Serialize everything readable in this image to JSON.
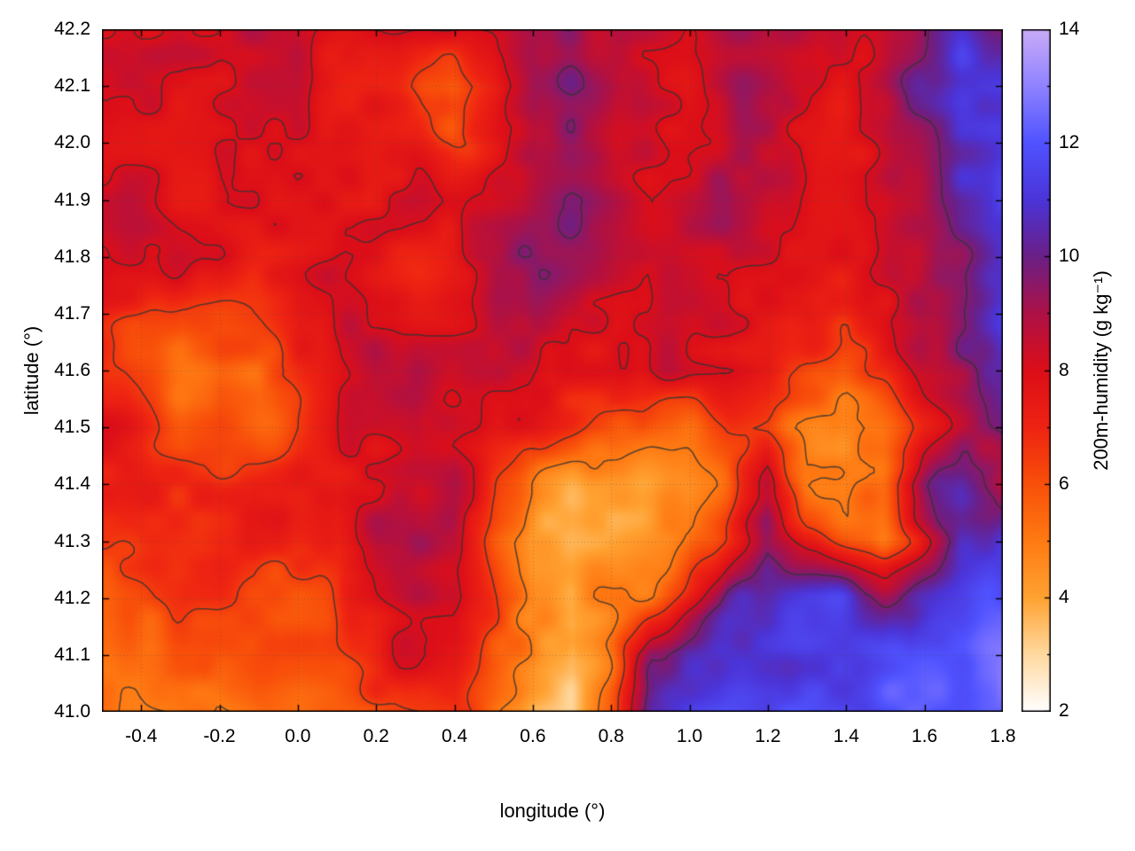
{
  "chart_data": {
    "type": "heatmap",
    "title": "",
    "xlabel": "longitude (°)",
    "ylabel": "latitude (°)",
    "xlim": [
      -0.5,
      1.8
    ],
    "ylim": [
      41.0,
      42.2
    ],
    "grid_on": true,
    "xtick_values": [
      -0.4,
      -0.2,
      0.0,
      0.2,
      0.4,
      0.6,
      0.8,
      1.0,
      1.2,
      1.4,
      1.6,
      1.8
    ],
    "xtick_labels": [
      "-0.4",
      "-0.2",
      "0.0",
      "0.2",
      "0.4",
      "0.6",
      "0.8",
      "1.0",
      "1.2",
      "1.4",
      "1.6",
      "1.8"
    ],
    "ytick_values": [
      41.0,
      41.1,
      41.2,
      41.3,
      41.4,
      41.5,
      41.6,
      41.7,
      41.8,
      41.9,
      42.0,
      42.1,
      42.2
    ],
    "ytick_labels": [
      "41.0",
      "41.1",
      "41.2",
      "41.3",
      "41.4",
      "41.5",
      "41.6",
      "41.7",
      "41.8",
      "41.9",
      "42.0",
      "42.1",
      "42.2"
    ],
    "colorbar": {
      "label": "200m-humidity (g kg⁻¹)",
      "min": 2,
      "max": 14,
      "tick_values": [
        2,
        4,
        6,
        8,
        10,
        12,
        14
      ],
      "tick_labels": [
        "2",
        "4",
        "6",
        "8",
        "10",
        "12",
        "14"
      ],
      "minor_tick_values": [
        3,
        5,
        7,
        9,
        11,
        13
      ]
    },
    "palette": [
      [
        2,
        "#ffffff"
      ],
      [
        3,
        "#ffd9a0"
      ],
      [
        4,
        "#ffa232"
      ],
      [
        5,
        "#ff7a12"
      ],
      [
        6,
        "#f8500a"
      ],
      [
        7,
        "#ee2312"
      ],
      [
        8,
        "#dc0e18"
      ],
      [
        9,
        "#ad1146"
      ],
      [
        10,
        "#6b1f86"
      ],
      [
        11,
        "#4b34d8"
      ],
      [
        12,
        "#4f52ff"
      ],
      [
        13,
        "#8f82ff"
      ],
      [
        14,
        "#c9abf7"
      ]
    ],
    "contour_levels": [
      5.0,
      6.5,
      8.05,
      9.6
    ],
    "contour_color": "#333333",
    "humidity_grid": {
      "nx": 24,
      "ny": 13,
      "lat_order": "north_to_south",
      "values": [
        [
          8.3,
          8.0,
          8.3,
          8.0,
          8.2,
          8.4,
          8.0,
          8.2,
          7.8,
          7.8,
          8.5,
          9.2,
          9.0,
          8.4,
          9.0,
          8.6,
          8.8,
          8.4,
          8.6,
          8.2,
          8.5,
          9.5,
          11.0,
          9.5
        ],
        [
          8.0,
          8.2,
          8.0,
          7.8,
          8.0,
          8.2,
          7.8,
          7.6,
          6.5,
          5.5,
          6.5,
          8.8,
          9.4,
          9.0,
          8.4,
          8.0,
          8.6,
          8.8,
          8.2,
          8.0,
          8.4,
          10.0,
          11.5,
          11.8
        ],
        [
          7.8,
          8.0,
          8.2,
          8.0,
          7.8,
          8.0,
          8.2,
          7.8,
          7.2,
          6.0,
          7.0,
          8.4,
          8.8,
          8.2,
          8.6,
          8.2,
          8.0,
          8.4,
          8.0,
          7.8,
          8.2,
          9.0,
          11.0,
          11.5
        ],
        [
          8.2,
          8.5,
          8.0,
          7.8,
          8.0,
          7.8,
          7.6,
          7.8,
          8.0,
          7.8,
          8.2,
          8.8,
          9.2,
          8.6,
          8.2,
          8.8,
          9.0,
          8.4,
          8.0,
          7.6,
          7.8,
          8.5,
          10.5,
          11.5
        ],
        [
          7.8,
          8.0,
          7.8,
          8.0,
          7.6,
          7.8,
          8.0,
          7.8,
          7.6,
          7.8,
          8.6,
          9.0,
          8.6,
          8.2,
          8.0,
          8.2,
          8.4,
          8.0,
          7.8,
          7.6,
          7.8,
          8.2,
          9.5,
          11.0
        ],
        [
          7.2,
          6.5,
          6.0,
          6.2,
          6.8,
          7.5,
          7.8,
          8.0,
          7.8,
          8.0,
          8.4,
          8.8,
          8.2,
          8.0,
          7.8,
          8.0,
          8.2,
          7.8,
          7.4,
          6.5,
          7.2,
          8.5,
          9.5,
          11.2
        ],
        [
          7.0,
          6.0,
          5.2,
          5.8,
          5.5,
          6.8,
          7.5,
          8.5,
          9.0,
          8.2,
          8.0,
          8.2,
          8.0,
          7.8,
          8.0,
          7.8,
          8.0,
          7.6,
          6.0,
          5.0,
          6.5,
          8.0,
          9.0,
          10.2
        ],
        [
          7.2,
          6.8,
          6.2,
          6.5,
          6.0,
          6.8,
          7.5,
          8.0,
          8.8,
          8.0,
          7.6,
          7.2,
          6.8,
          6.5,
          6.0,
          5.8,
          6.2,
          5.5,
          4.8,
          4.5,
          5.5,
          7.5,
          9.0,
          10.0
        ],
        [
          7.0,
          7.2,
          7.0,
          6.8,
          7.0,
          7.2,
          7.0,
          7.5,
          8.5,
          9.0,
          6.5,
          4.8,
          4.2,
          4.0,
          4.2,
          4.8,
          5.5,
          8.5,
          5.0,
          4.5,
          5.5,
          9.5,
          10.5,
          9.2
        ],
        [
          6.8,
          7.0,
          6.8,
          7.0,
          6.8,
          7.0,
          7.2,
          9.0,
          9.3,
          8.8,
          6.0,
          4.0,
          3.6,
          4.0,
          4.8,
          5.2,
          7.0,
          9.5,
          7.0,
          5.5,
          5.0,
          7.5,
          10.8,
          11.2
        ],
        [
          6.5,
          6.2,
          6.5,
          6.8,
          6.5,
          6.2,
          6.8,
          8.0,
          9.2,
          9.0,
          7.0,
          4.2,
          3.6,
          4.5,
          5.5,
          8.0,
          10.8,
          11.2,
          11.0,
          10.8,
          9.5,
          10.8,
          11.2,
          11.5
        ],
        [
          5.8,
          5.5,
          5.8,
          6.0,
          6.2,
          6.0,
          6.5,
          7.5,
          8.5,
          8.0,
          6.0,
          5.0,
          3.4,
          5.0,
          10.0,
          11.2,
          11.5,
          11.3,
          11.5,
          11.2,
          11.5,
          11.8,
          11.5,
          12.0
        ],
        [
          5.2,
          5.0,
          5.5,
          5.2,
          5.8,
          5.5,
          6.0,
          6.5,
          6.8,
          7.0,
          5.5,
          3.6,
          3.2,
          6.0,
          11.0,
          11.5,
          11.8,
          11.5,
          11.8,
          11.5,
          11.8,
          12.0,
          11.8,
          12.2
        ]
      ]
    }
  }
}
